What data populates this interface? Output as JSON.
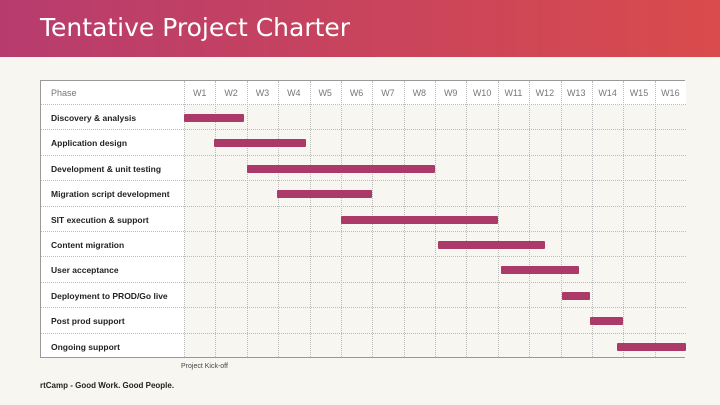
{
  "title": "Tentative Project Charter",
  "phase_header": "Phase",
  "weeks": [
    "W1",
    "W2",
    "W3",
    "W4",
    "W5",
    "W6",
    "W7",
    "W8",
    "W9",
    "W10",
    "W11",
    "W12",
    "W13",
    "W14",
    "W15",
    "W16"
  ],
  "tasks": [
    {
      "name": "Discovery & analysis",
      "start": 0.0,
      "end": 1.9
    },
    {
      "name": "Application design",
      "start": 0.95,
      "end": 3.9
    },
    {
      "name": "Development & unit testing",
      "start": 2.0,
      "end": 8.0
    },
    {
      "name": "Migration script development",
      "start": 2.95,
      "end": 6.0
    },
    {
      "name": "SIT execution & support",
      "start": 5.0,
      "end": 10.0
    },
    {
      "name": "Content migration",
      "start": 8.1,
      "end": 11.5
    },
    {
      "name": "User acceptance",
      "start": 10.1,
      "end": 12.6
    },
    {
      "name": "Deployment to PROD/Go live",
      "start": 12.05,
      "end": 12.95
    },
    {
      "name": "Post prod support",
      "start": 12.95,
      "end": 14.0
    },
    {
      "name": "Ongoing support",
      "start": 13.8,
      "end": 16.0
    }
  ],
  "kickoff_label": "Project Kick-off",
  "footer": "rtCamp - Good Work. Good People.",
  "colors": {
    "bar": "#ab3a68",
    "header_start": "#b73c6e",
    "header_end": "#d94b4c"
  }
}
